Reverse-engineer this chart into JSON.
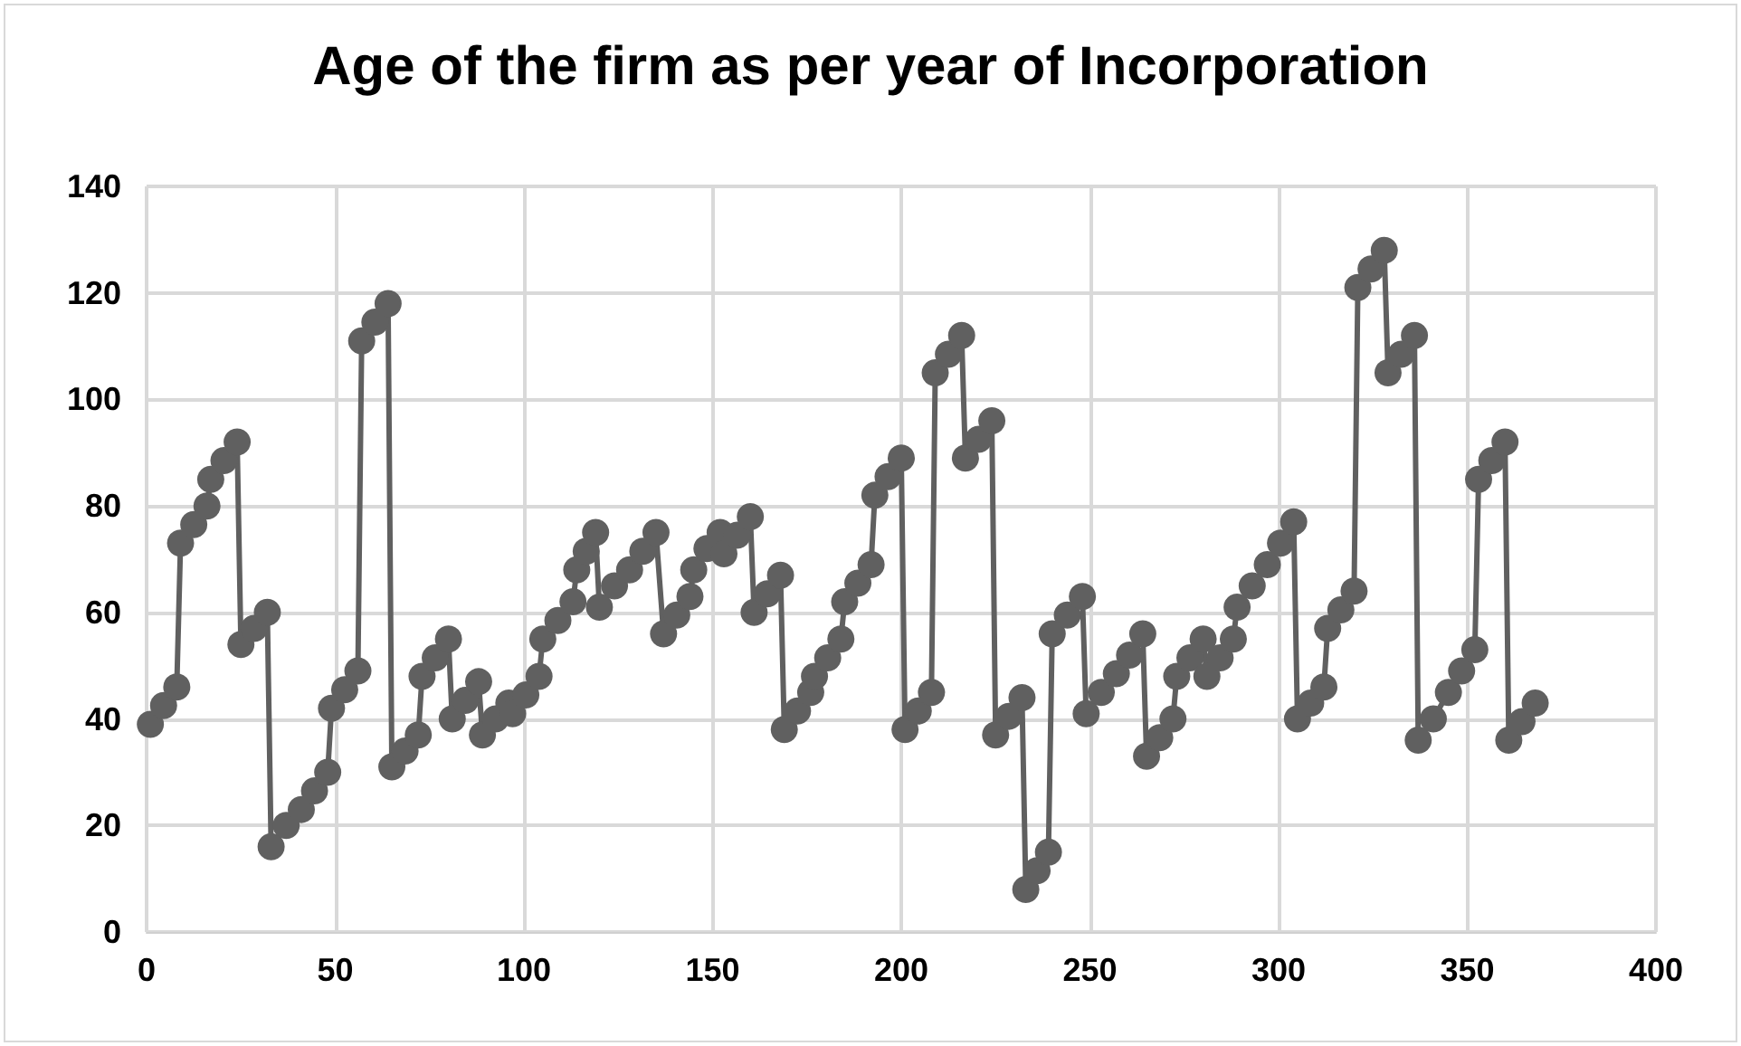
{
  "chart_data": {
    "type": "line",
    "title": "Age of the firm as per year of Incorporation",
    "color": "#606060",
    "marker": "circle",
    "line_style": "solid",
    "grid": true,
    "xlim": [
      0,
      400
    ],
    "xticks": [
      0,
      50,
      100,
      150,
      200,
      250,
      300,
      350,
      400
    ],
    "ylim": [
      0,
      140
    ],
    "yticks": [
      0,
      20,
      40,
      60,
      80,
      100,
      120,
      140
    ],
    "x": [
      1,
      4.5,
      8,
      9,
      12.5,
      16,
      17,
      20.5,
      24,
      25,
      28.5,
      32,
      33,
      37,
      41,
      44.5,
      48,
      49,
      52.5,
      56,
      57,
      60.5,
      64,
      65,
      68.5,
      72,
      73,
      76.5,
      80,
      81,
      84.5,
      88,
      89,
      92.5,
      96,
      97,
      100.5,
      104,
      105,
      109,
      113,
      114,
      116.5,
      119,
      120,
      124,
      128,
      131.5,
      135,
      137,
      140.5,
      144,
      145,
      148.5,
      152,
      153,
      156.5,
      160,
      161,
      164.5,
      168,
      169,
      172.5,
      176,
      177,
      180.5,
      184,
      185,
      188.5,
      192,
      193,
      196.5,
      200,
      201,
      204.5,
      208,
      209,
      212.5,
      216,
      217,
      220.5,
      224,
      225,
      228.5,
      232,
      233,
      236,
      239,
      240,
      244,
      248,
      249,
      253,
      257,
      260.5,
      264,
      265,
      268.5,
      272,
      273,
      276.5,
      280,
      281,
      284.5,
      288,
      289,
      293,
      297,
      300.5,
      304,
      305,
      308.5,
      312,
      313,
      316.5,
      320,
      321,
      324.5,
      328,
      329,
      332.5,
      336,
      337,
      341,
      345,
      348.5,
      352,
      353,
      356.5,
      360,
      361,
      364.5,
      368
    ],
    "values": [
      39,
      42.5,
      46,
      73,
      76.5,
      80,
      85,
      88.5,
      92,
      54,
      57,
      60,
      16,
      20,
      23,
      26.5,
      30,
      42,
      45.5,
      49,
      111,
      114.5,
      118,
      31,
      34,
      37,
      48,
      51.5,
      55,
      40,
      43.5,
      47,
      37,
      40,
      43,
      41,
      44.5,
      48,
      55,
      58.5,
      62,
      68,
      71.5,
      75,
      61,
      65,
      68,
      71.5,
      75,
      56,
      59.5,
      63,
      68,
      72,
      75,
      71,
      74.5,
      78,
      60,
      63.5,
      67,
      38,
      41.5,
      45,
      48,
      51.5,
      55,
      62,
      65.5,
      69,
      82,
      85.5,
      89,
      38,
      41.5,
      45,
      105,
      108.5,
      112,
      89,
      92.5,
      96,
      37,
      40.5,
      44,
      8,
      11.5,
      15,
      56,
      59.5,
      63,
      41,
      45,
      48.5,
      52,
      56,
      33,
      36.5,
      40,
      48,
      51.5,
      55,
      48,
      51.5,
      55,
      61,
      65,
      69,
      73,
      77,
      40,
      43,
      46,
      57,
      60.5,
      64,
      121,
      124.5,
      128,
      105,
      108.5,
      112,
      36,
      40,
      45,
      49,
      53,
      85,
      88.5,
      92,
      36,
      39.5,
      43
    ]
  }
}
